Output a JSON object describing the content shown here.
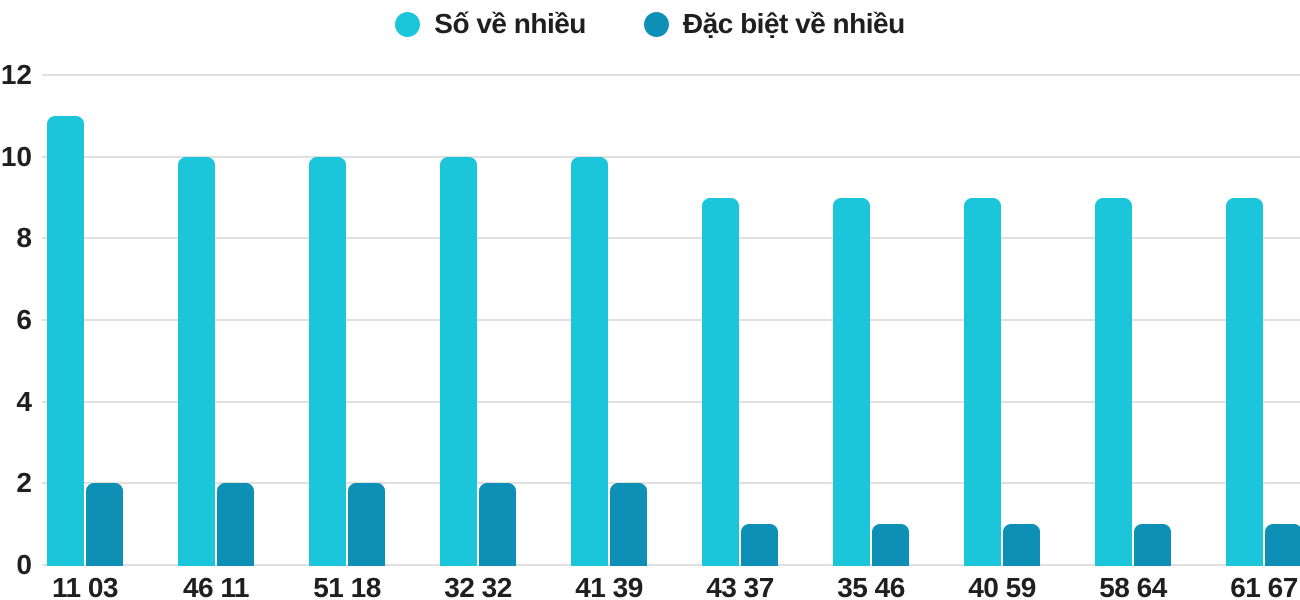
{
  "chart_data": {
    "type": "bar",
    "title": "",
    "xlabel": "",
    "ylabel": "",
    "categories": [
      "11 03",
      "46 11",
      "51 18",
      "32 32",
      "41 39",
      "43 37",
      "35 46",
      "40 59",
      "58 64",
      "61 67"
    ],
    "series": [
      {
        "name": "Số về nhiều",
        "color": "#1CC6DA",
        "values": [
          11,
          10,
          10,
          10,
          10,
          9,
          9,
          9,
          9,
          9
        ]
      },
      {
        "name": "Đặc biệt về nhiều",
        "color": "#0E90B6",
        "values": [
          2,
          2,
          2,
          2,
          2,
          1,
          1,
          1,
          1,
          1
        ]
      }
    ],
    "ylim": [
      0,
      12
    ],
    "yticks": [
      0,
      2,
      4,
      6,
      8,
      10,
      12
    ],
    "grid": "horizontal-only",
    "gridline_color": "#e0e0e0",
    "text_color": "#1f1f1f",
    "background": "#ffffff",
    "legend_position": "top-center"
  }
}
